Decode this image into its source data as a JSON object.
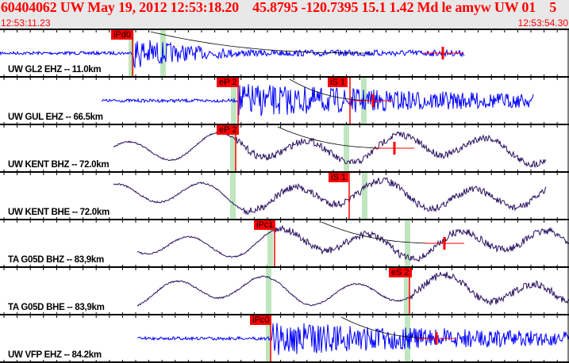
{
  "header": {
    "title": "60404062 UW May 19, 2012 12:53:18.20    45.8795 -120.7395 15.1 1.42 Md le amyw UW 01    5",
    "start_time": "12:53:11.23",
    "end_time": "12:53:54.30"
  },
  "colors": {
    "title": "#ff0000",
    "short_period": "#0000ff",
    "broadband": "#2a1060",
    "pick": "#ff0000",
    "window": "#bfe6bf"
  },
  "traces": [
    {
      "label": "UW GL2 EHZ -- 11.0km",
      "type": "short",
      "picks": [
        {
          "label": "iPd0"
        }
      ]
    },
    {
      "label": "UW GUL EHZ -- 66.5km",
      "type": "short",
      "picks": [
        {
          "label": "eP 2"
        },
        {
          "label": "iS 1"
        }
      ]
    },
    {
      "label": "UW KENT BHZ -- 72.0km",
      "type": "broad",
      "picks": [
        {
          "label": "eP 2"
        }
      ]
    },
    {
      "label": "UW KENT BHE -- 72.0km",
      "type": "broad",
      "picks": [
        {
          "label": "iS 1"
        }
      ]
    },
    {
      "label": "TA G05D BHZ -- 83,9km",
      "type": "broad",
      "picks": [
        {
          "label": "iPc1"
        }
      ]
    },
    {
      "label": "TA G05D BHE -- 83,9km",
      "type": "broad",
      "picks": [
        {
          "label": "eS 2"
        }
      ]
    },
    {
      "label": "UW VFP EHZ -- 84.2km",
      "type": "short",
      "picks": [
        {
          "label": "iPc0"
        }
      ]
    }
  ]
}
